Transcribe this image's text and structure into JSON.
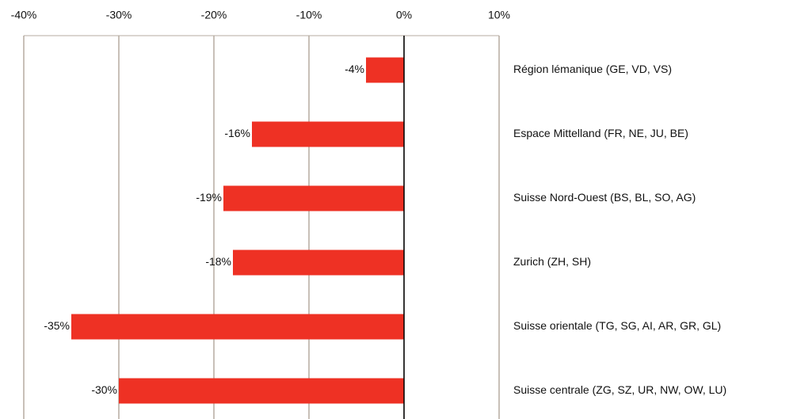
{
  "chart_data": {
    "type": "hbar",
    "categories": [
      "Région lémanique (GE, VD, VS)",
      "Espace Mittelland (FR, NE, JU, BE)",
      "Suisse Nord-Ouest (BS, BL, SO, AG)",
      "Zurich (ZH, SH)",
      "Suisse orientale (TG, SG, AI, AR, GR, GL)",
      "Suisse centrale (ZG, SZ, UR, NW, OW, LU)"
    ],
    "values": [
      -4,
      -16,
      -19,
      -18,
      -35,
      -30
    ],
    "value_labels": [
      "-4%",
      "-16%",
      "-19%",
      "-18%",
      "-35%",
      "-30%"
    ],
    "color": "#ee3124",
    "xlim": [
      -40,
      10
    ],
    "xticks": [
      {
        "value": -40,
        "label": "-40%"
      },
      {
        "value": -30,
        "label": "-30%"
      },
      {
        "value": -20,
        "label": "-20%"
      },
      {
        "value": -10,
        "label": "-10%"
      },
      {
        "value": 0,
        "label": "0%"
      },
      {
        "value": 10,
        "label": "10%"
      }
    ],
    "grid": true
  }
}
